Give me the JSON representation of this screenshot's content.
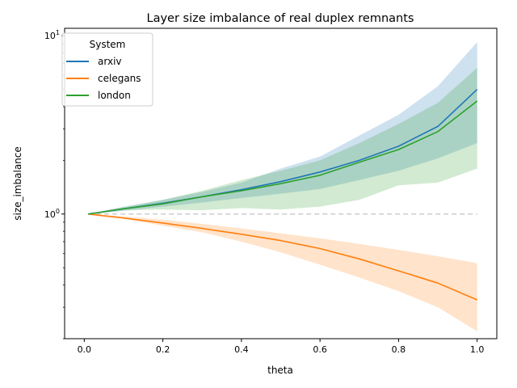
{
  "chart_data": {
    "type": "line",
    "title": "Layer size imbalance of real duplex remnants",
    "xlabel": "theta",
    "ylabel": "size_imbalance",
    "xlim": [
      -0.05,
      1.05
    ],
    "ylim": [
      0.2,
      11
    ],
    "yscale": "log",
    "grid": false,
    "xticks": [
      0.0,
      0.2,
      0.4,
      0.6,
      0.8,
      1.0
    ],
    "xtick_labels": [
      "0.0",
      "0.2",
      "0.4",
      "0.6",
      "0.8",
      "1.0"
    ],
    "ytick_labels": [
      {
        "value": 1,
        "base": "10",
        "exp": "0"
      },
      {
        "value": 10,
        "base": "10",
        "exp": "1"
      }
    ],
    "legend": {
      "title": "System",
      "placement": "top-left"
    },
    "reference_line": {
      "y": 1,
      "style": "dashed",
      "color": "#cccccc"
    },
    "series": [
      {
        "name": "arxiv",
        "color": "#1f77b4",
        "x": [
          0.01,
          0.1,
          0.2,
          0.3,
          0.4,
          0.5,
          0.6,
          0.7,
          0.8,
          0.9,
          1.0
        ],
        "values": [
          1.0,
          1.07,
          1.15,
          1.25,
          1.37,
          1.52,
          1.72,
          2.0,
          2.4,
          3.1,
          5.0
        ],
        "lower": [
          1.0,
          1.04,
          1.1,
          1.16,
          1.23,
          1.3,
          1.38,
          1.55,
          1.75,
          2.05,
          2.5
        ],
        "upper": [
          1.0,
          1.1,
          1.2,
          1.33,
          1.5,
          1.8,
          2.1,
          2.75,
          3.6,
          5.2,
          9.2
        ]
      },
      {
        "name": "celegans",
        "color": "#ff7f0e",
        "x": [
          0.01,
          0.1,
          0.2,
          0.3,
          0.4,
          0.5,
          0.6,
          0.7,
          0.8,
          0.9,
          1.0
        ],
        "values": [
          1.0,
          0.95,
          0.89,
          0.83,
          0.77,
          0.71,
          0.64,
          0.56,
          0.48,
          0.41,
          0.33
        ],
        "lower": [
          1.0,
          0.94,
          0.86,
          0.79,
          0.7,
          0.61,
          0.52,
          0.44,
          0.37,
          0.3,
          0.22
        ],
        "upper": [
          1.0,
          0.97,
          0.93,
          0.88,
          0.83,
          0.78,
          0.73,
          0.68,
          0.63,
          0.58,
          0.53
        ]
      },
      {
        "name": "london",
        "color": "#2ca02c",
        "x": [
          0.01,
          0.1,
          0.2,
          0.3,
          0.4,
          0.5,
          0.6,
          0.7,
          0.8,
          0.9,
          1.0
        ],
        "values": [
          1.0,
          1.07,
          1.14,
          1.25,
          1.35,
          1.48,
          1.65,
          1.95,
          2.3,
          2.9,
          4.3
        ],
        "lower": [
          1.0,
          1.05,
          1.06,
          1.05,
          1.08,
          1.06,
          1.1,
          1.2,
          1.45,
          1.5,
          1.8
        ],
        "upper": [
          1.0,
          1.09,
          1.2,
          1.35,
          1.55,
          1.75,
          2.0,
          2.5,
          3.2,
          4.2,
          6.6
        ]
      }
    ]
  }
}
